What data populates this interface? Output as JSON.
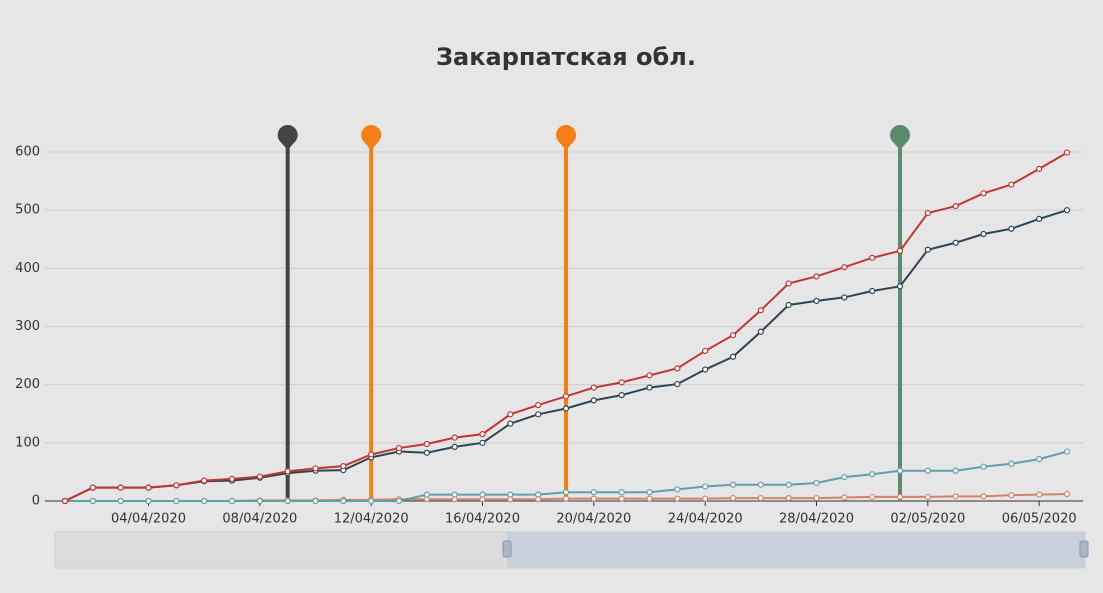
{
  "chart_data": {
    "type": "line",
    "title": "Закарпатская обл.",
    "categories": [
      null,
      null,
      null,
      "04/04/2020",
      null,
      null,
      null,
      "08/04/2020",
      null,
      null,
      null,
      "12/04/2020",
      null,
      null,
      null,
      "16/04/2020",
      null,
      null,
      null,
      "20/04/2020",
      null,
      null,
      null,
      "24/04/2020",
      null,
      null,
      null,
      "28/04/2020",
      null,
      null,
      null,
      "02/05/2020",
      null,
      null,
      null,
      "06/05/2020",
      null
    ],
    "series": [
      {
        "color": "#c23531",
        "values": [
          0,
          23,
          23,
          23,
          27,
          35,
          38,
          42,
          51,
          56,
          60,
          80,
          91,
          98,
          109,
          115,
          149,
          165,
          180,
          195,
          204,
          216,
          228,
          258,
          285,
          328,
          374,
          386,
          402,
          418,
          430,
          495,
          507,
          529,
          544,
          571,
          599
        ]
      },
      {
        "color": "#2f4554",
        "values": [
          0,
          23,
          23,
          23,
          27,
          34,
          35,
          40,
          48,
          52,
          53,
          75,
          85,
          83,
          93,
          100,
          133,
          149,
          159,
          173,
          182,
          195,
          201,
          226,
          248,
          291,
          337,
          344,
          350,
          361,
          369,
          432,
          444,
          459,
          468,
          485,
          500
        ]
      },
      {
        "color": "#61a0a8",
        "values": [
          0,
          0,
          0,
          0,
          0,
          0,
          0,
          0,
          0,
          0,
          0,
          0,
          0,
          11,
          11,
          11,
          11,
          11,
          15,
          15,
          15,
          15,
          20,
          25,
          28,
          28,
          28,
          31,
          41,
          46,
          52,
          52,
          52,
          59,
          64,
          72,
          85
        ]
      },
      {
        "color": "#d48265",
        "values": [
          0,
          0,
          0,
          0,
          0,
          0,
          0,
          1,
          1,
          1,
          2,
          2,
          3,
          3,
          3,
          3,
          3,
          3,
          4,
          4,
          4,
          4,
          4,
          4,
          5,
          5,
          5,
          5,
          6,
          7,
          7,
          7,
          8,
          8,
          10,
          11,
          12
        ]
      }
    ],
    "events": [
      {
        "x": 8,
        "color": "#444444"
      },
      {
        "x": 11,
        "color": "#f57f17"
      },
      {
        "x": 18,
        "color": "#f57f17"
      },
      {
        "x": 30,
        "color": "#5b8a6f"
      }
    ],
    "ylim": [
      0,
      600
    ],
    "yticks": [
      0,
      100,
      200,
      300,
      400,
      500,
      600
    ],
    "grid": true
  }
}
